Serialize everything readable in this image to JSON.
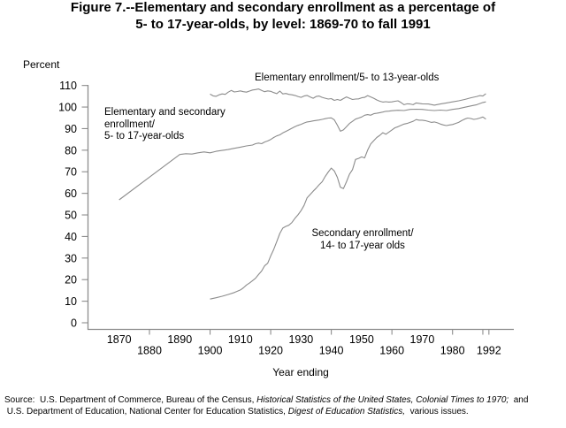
{
  "title": {
    "line1": "Figure 7.--Elementary and secondary enrollment as a percentage of",
    "line2": "5- to 17-year-olds, by level: 1869-70 to fall 1991"
  },
  "chart_data": {
    "type": "line",
    "title": "Figure 7.--Elementary and secondary enrollment as a percentage of 5- to 17-year-olds, by level: 1869-70 to fall 1991",
    "ylabel": "Percent",
    "xlabel": "Year ending",
    "ylim": [
      0,
      110
    ],
    "xlim_years": [
      1870,
      1992
    ],
    "grid": false,
    "legend_position": "inline-annotations",
    "line_color": "#8c8c8c",
    "y_ticks": [
      0,
      10,
      20,
      30,
      40,
      50,
      60,
      70,
      80,
      90,
      100,
      110
    ],
    "x_ticks_upper": [
      1870,
      1890,
      1910,
      1930,
      1950,
      1970
    ],
    "x_ticks_lower": [
      1880,
      1900,
      1920,
      1940,
      1960,
      1980
    ],
    "x_ticks_end": [
      1990,
      1992
    ],
    "x_tick_end_label": 1992,
    "series": [
      {
        "id": "elementary-secondary-5-17",
        "name": "Elementary and secondary enrollment/5- to 17-year-olds",
        "label": "Elementary and secondary\nenrollment/\n5- to 17-year-olds",
        "points": [
          [
            1870,
            57
          ],
          [
            1880,
            67.5
          ],
          [
            1890,
            78
          ],
          [
            1892,
            78.4
          ],
          [
            1894,
            78.2
          ],
          [
            1896,
            78.8
          ],
          [
            1898,
            79.2
          ],
          [
            1900,
            78.8
          ],
          [
            1902,
            79.5
          ],
          [
            1904,
            79.9
          ],
          [
            1906,
            80.3
          ],
          [
            1908,
            80.9
          ],
          [
            1910,
            81.4
          ],
          [
            1912,
            82
          ],
          [
            1914,
            82.4
          ],
          [
            1915,
            83
          ],
          [
            1916,
            83.3
          ],
          [
            1917,
            83
          ],
          [
            1918,
            83.8
          ],
          [
            1919,
            84.3
          ],
          [
            1920,
            85
          ],
          [
            1921,
            85.9
          ],
          [
            1922,
            86.6
          ],
          [
            1923,
            87.1
          ],
          [
            1924,
            88
          ],
          [
            1925,
            88.7
          ],
          [
            1926,
            89.4
          ],
          [
            1927,
            90.2
          ],
          [
            1928,
            90.9
          ],
          [
            1929,
            91.5
          ],
          [
            1930,
            92
          ],
          [
            1931,
            92.6
          ],
          [
            1932,
            93.1
          ],
          [
            1933,
            93.3
          ],
          [
            1934,
            93.6
          ],
          [
            1935,
            93.8
          ],
          [
            1936,
            94
          ],
          [
            1937,
            94.3
          ],
          [
            1938,
            94.6
          ],
          [
            1939,
            94.9
          ],
          [
            1940,
            95
          ],
          [
            1941,
            94.1
          ],
          [
            1942,
            91.6
          ],
          [
            1943,
            88.8
          ],
          [
            1944,
            89.4
          ],
          [
            1945,
            90.9
          ],
          [
            1946,
            92.4
          ],
          [
            1947,
            93.4
          ],
          [
            1948,
            94.4
          ],
          [
            1949,
            94.9
          ],
          [
            1950,
            95.4
          ],
          [
            1951,
            96.2
          ],
          [
            1952,
            96.5
          ],
          [
            1953,
            96.2
          ],
          [
            1954,
            96.9
          ],
          [
            1955,
            97.1
          ],
          [
            1956,
            97.4
          ],
          [
            1957,
            97.7
          ],
          [
            1958,
            98
          ],
          [
            1959,
            98.1
          ],
          [
            1960,
            98.3
          ],
          [
            1962,
            98.5
          ],
          [
            1964,
            98.4
          ],
          [
            1966,
            98.9
          ],
          [
            1968,
            99
          ],
          [
            1970,
            98.9
          ],
          [
            1972,
            98.6
          ],
          [
            1974,
            98.4
          ],
          [
            1976,
            98.6
          ],
          [
            1978,
            98.4
          ],
          [
            1980,
            98.9
          ],
          [
            1982,
            99.3
          ],
          [
            1984,
            99.9
          ],
          [
            1986,
            100.5
          ],
          [
            1988,
            101.1
          ],
          [
            1990,
            102.1
          ],
          [
            1991,
            102.4
          ]
        ]
      },
      {
        "id": "elementary-5-13",
        "name": "Elementary enrollment/5- to 13-year-olds",
        "label": "Elementary enrollment/5- to 13-year-olds",
        "points": [
          [
            1900,
            106
          ],
          [
            1901,
            105.2
          ],
          [
            1902,
            105
          ],
          [
            1903,
            105.7
          ],
          [
            1904,
            106.1
          ],
          [
            1905,
            105.9
          ],
          [
            1906,
            106.9
          ],
          [
            1907,
            107.7
          ],
          [
            1908,
            107
          ],
          [
            1909,
            107.2
          ],
          [
            1910,
            107.5
          ],
          [
            1911,
            107.1
          ],
          [
            1912,
            106.9
          ],
          [
            1913,
            107.4
          ],
          [
            1914,
            107.9
          ],
          [
            1915,
            108.1
          ],
          [
            1916,
            108.4
          ],
          [
            1917,
            107.7
          ],
          [
            1918,
            107.1
          ],
          [
            1919,
            107.5
          ],
          [
            1920,
            107.3
          ],
          [
            1921,
            106.7
          ],
          [
            1922,
            106.2
          ],
          [
            1923,
            107.4
          ],
          [
            1924,
            106.1
          ],
          [
            1925,
            106.3
          ],
          [
            1926,
            105.9
          ],
          [
            1927,
            105.7
          ],
          [
            1928,
            105.4
          ],
          [
            1929,
            104.9
          ],
          [
            1930,
            104.5
          ],
          [
            1931,
            105.1
          ],
          [
            1932,
            105.4
          ],
          [
            1933,
            104.7
          ],
          [
            1934,
            104.1
          ],
          [
            1935,
            104.9
          ],
          [
            1936,
            105.1
          ],
          [
            1937,
            104.5
          ],
          [
            1938,
            104.1
          ],
          [
            1939,
            103.7
          ],
          [
            1940,
            103.9
          ],
          [
            1941,
            103.1
          ],
          [
            1942,
            103.5
          ],
          [
            1943,
            103.1
          ],
          [
            1944,
            103.9
          ],
          [
            1945,
            104.7
          ],
          [
            1946,
            104.1
          ],
          [
            1947,
            103.5
          ],
          [
            1948,
            103.7
          ],
          [
            1949,
            103.8
          ],
          [
            1950,
            104.3
          ],
          [
            1951,
            104.5
          ],
          [
            1952,
            105.3
          ],
          [
            1953,
            104.7
          ],
          [
            1954,
            104.1
          ],
          [
            1955,
            103.3
          ],
          [
            1956,
            102.7
          ],
          [
            1957,
            102.3
          ],
          [
            1958,
            102.5
          ],
          [
            1959,
            102.3
          ],
          [
            1960,
            102.4
          ],
          [
            1961,
            102.7
          ],
          [
            1962,
            102.9
          ],
          [
            1963,
            102.1
          ],
          [
            1964,
            101.1
          ],
          [
            1965,
            101.5
          ],
          [
            1966,
            101.4
          ],
          [
            1967,
            101.1
          ],
          [
            1968,
            101.9
          ],
          [
            1969,
            101.7
          ],
          [
            1970,
            101.5
          ],
          [
            1972,
            101.4
          ],
          [
            1974,
            100.9
          ],
          [
            1976,
            101.4
          ],
          [
            1978,
            101.9
          ],
          [
            1980,
            102.4
          ],
          [
            1982,
            102.9
          ],
          [
            1984,
            103.5
          ],
          [
            1986,
            104.3
          ],
          [
            1988,
            104.9
          ],
          [
            1989,
            105.3
          ],
          [
            1990,
            105.1
          ],
          [
            1991,
            106.2
          ]
        ]
      },
      {
        "id": "secondary-14-17",
        "name": "Secondary enrollment/14- to 17-year olds",
        "label": "Secondary enrollment/\n14- to 17-year olds",
        "points": [
          [
            1900,
            11
          ],
          [
            1902,
            11.6
          ],
          [
            1904,
            12.3
          ],
          [
            1906,
            13.1
          ],
          [
            1908,
            14
          ],
          [
            1910,
            15.2
          ],
          [
            1911,
            16.2
          ],
          [
            1912,
            17.5
          ],
          [
            1913,
            18.4
          ],
          [
            1914,
            19.5
          ],
          [
            1915,
            20.6
          ],
          [
            1916,
            22.4
          ],
          [
            1917,
            24
          ],
          [
            1918,
            26.4
          ],
          [
            1919,
            27.6
          ],
          [
            1920,
            31
          ],
          [
            1921,
            34
          ],
          [
            1922,
            37.6
          ],
          [
            1923,
            41.4
          ],
          [
            1924,
            43.9
          ],
          [
            1925,
            44.7
          ],
          [
            1926,
            45.2
          ],
          [
            1927,
            46.5
          ],
          [
            1928,
            48.4
          ],
          [
            1929,
            50
          ],
          [
            1930,
            52
          ],
          [
            1931,
            54.4
          ],
          [
            1932,
            57.9
          ],
          [
            1933,
            59.4
          ],
          [
            1934,
            61
          ],
          [
            1935,
            62.4
          ],
          [
            1936,
            64
          ],
          [
            1937,
            65.4
          ],
          [
            1938,
            67.9
          ],
          [
            1939,
            69.9
          ],
          [
            1940,
            71.7
          ],
          [
            1941,
            70.4
          ],
          [
            1942,
            67.4
          ],
          [
            1943,
            62.8
          ],
          [
            1944,
            62.2
          ],
          [
            1945,
            65.4
          ],
          [
            1946,
            68.9
          ],
          [
            1947,
            71
          ],
          [
            1948,
            75.7
          ],
          [
            1949,
            76.2
          ],
          [
            1950,
            76.9
          ],
          [
            1951,
            76.4
          ],
          [
            1952,
            80
          ],
          [
            1953,
            82.9
          ],
          [
            1954,
            84.4
          ],
          [
            1955,
            85.9
          ],
          [
            1956,
            86.9
          ],
          [
            1957,
            88.1
          ],
          [
            1958,
            87.4
          ],
          [
            1959,
            88.4
          ],
          [
            1960,
            89.4
          ],
          [
            1961,
            90.4
          ],
          [
            1962,
            90.9
          ],
          [
            1963,
            91.5
          ],
          [
            1964,
            92.1
          ],
          [
            1965,
            92.4
          ],
          [
            1966,
            92.9
          ],
          [
            1967,
            93.4
          ],
          [
            1968,
            94.2
          ],
          [
            1969,
            93.9
          ],
          [
            1970,
            93.9
          ],
          [
            1971,
            93.7
          ],
          [
            1972,
            93.3
          ],
          [
            1973,
            92.9
          ],
          [
            1974,
            93.1
          ],
          [
            1975,
            92.7
          ],
          [
            1976,
            92.1
          ],
          [
            1977,
            91.7
          ],
          [
            1978,
            91.4
          ],
          [
            1979,
            91.7
          ],
          [
            1980,
            91.9
          ],
          [
            1981,
            92.4
          ],
          [
            1982,
            92.9
          ],
          [
            1983,
            93.7
          ],
          [
            1984,
            94.4
          ],
          [
            1985,
            94.9
          ],
          [
            1986,
            94.7
          ],
          [
            1987,
            94.3
          ],
          [
            1988,
            94.5
          ],
          [
            1989,
            94.9
          ],
          [
            1990,
            95.4
          ],
          [
            1991,
            94.4
          ]
        ]
      }
    ]
  },
  "source_segments": [
    {
      "text": "Source:  U.S. Department of Commerce, Bureau of the Census, ",
      "italic": false
    },
    {
      "text": "Historical Statistics of the United States, Colonial Times to 1970;",
      "italic": true
    },
    {
      "text": "  and\n U.S. Department of Education, National Center for Education Statistics, ",
      "italic": false
    },
    {
      "text": "Digest of Education Statistics,",
      "italic": true
    },
    {
      "text": "  various issues.",
      "italic": false
    }
  ]
}
